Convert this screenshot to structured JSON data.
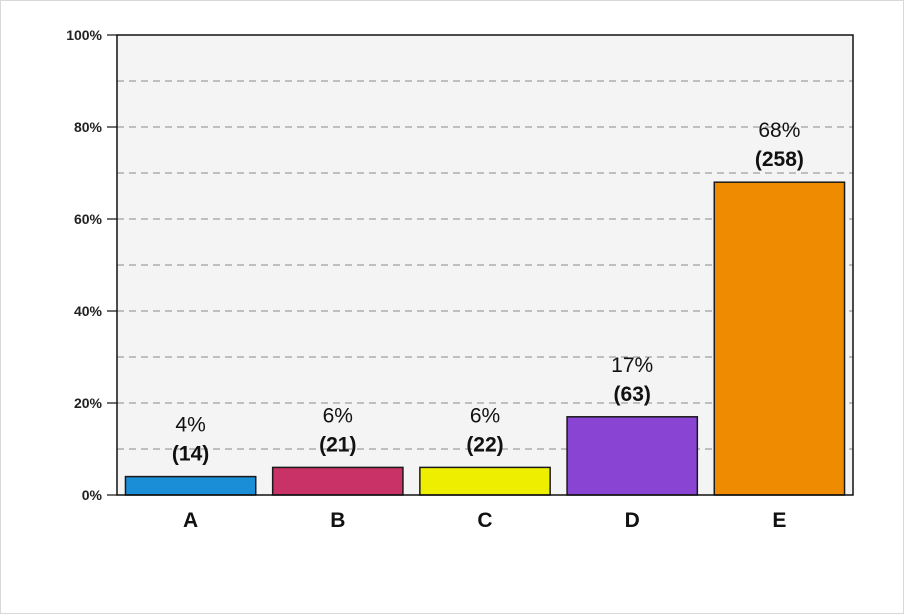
{
  "chart_data": {
    "type": "bar",
    "categories": [
      "A",
      "B",
      "C",
      "D",
      "E"
    ],
    "values": [
      4,
      6,
      6,
      17,
      68
    ],
    "counts": [
      "(14)",
      "(21)",
      "(22)",
      "(63)",
      "(258)"
    ],
    "value_labels": [
      "4%",
      "6%",
      "6%",
      "17%",
      "68%"
    ],
    "colors": [
      "#1a8fd8",
      "#c93266",
      "#eeee00",
      "#8a44d4",
      "#ef8b00"
    ],
    "ylim": [
      0,
      100
    ],
    "yticks": [
      0,
      20,
      40,
      60,
      80,
      100
    ],
    "ytick_labels": [
      "0%",
      "20%",
      "40%",
      "60%",
      "80%",
      "100%"
    ],
    "grid": true,
    "grid_step": 10,
    "title": "",
    "xlabel": "",
    "ylabel": ""
  }
}
